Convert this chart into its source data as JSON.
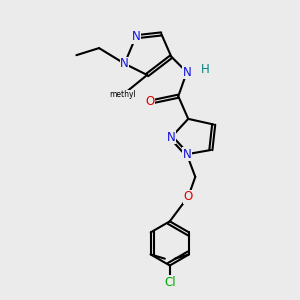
{
  "background_color": "#ebebeb",
  "atom_colors": {
    "N": "#1010dd",
    "O": "#dd0000",
    "Cl": "#00aa00",
    "C": "#000000",
    "H": "#008080"
  }
}
